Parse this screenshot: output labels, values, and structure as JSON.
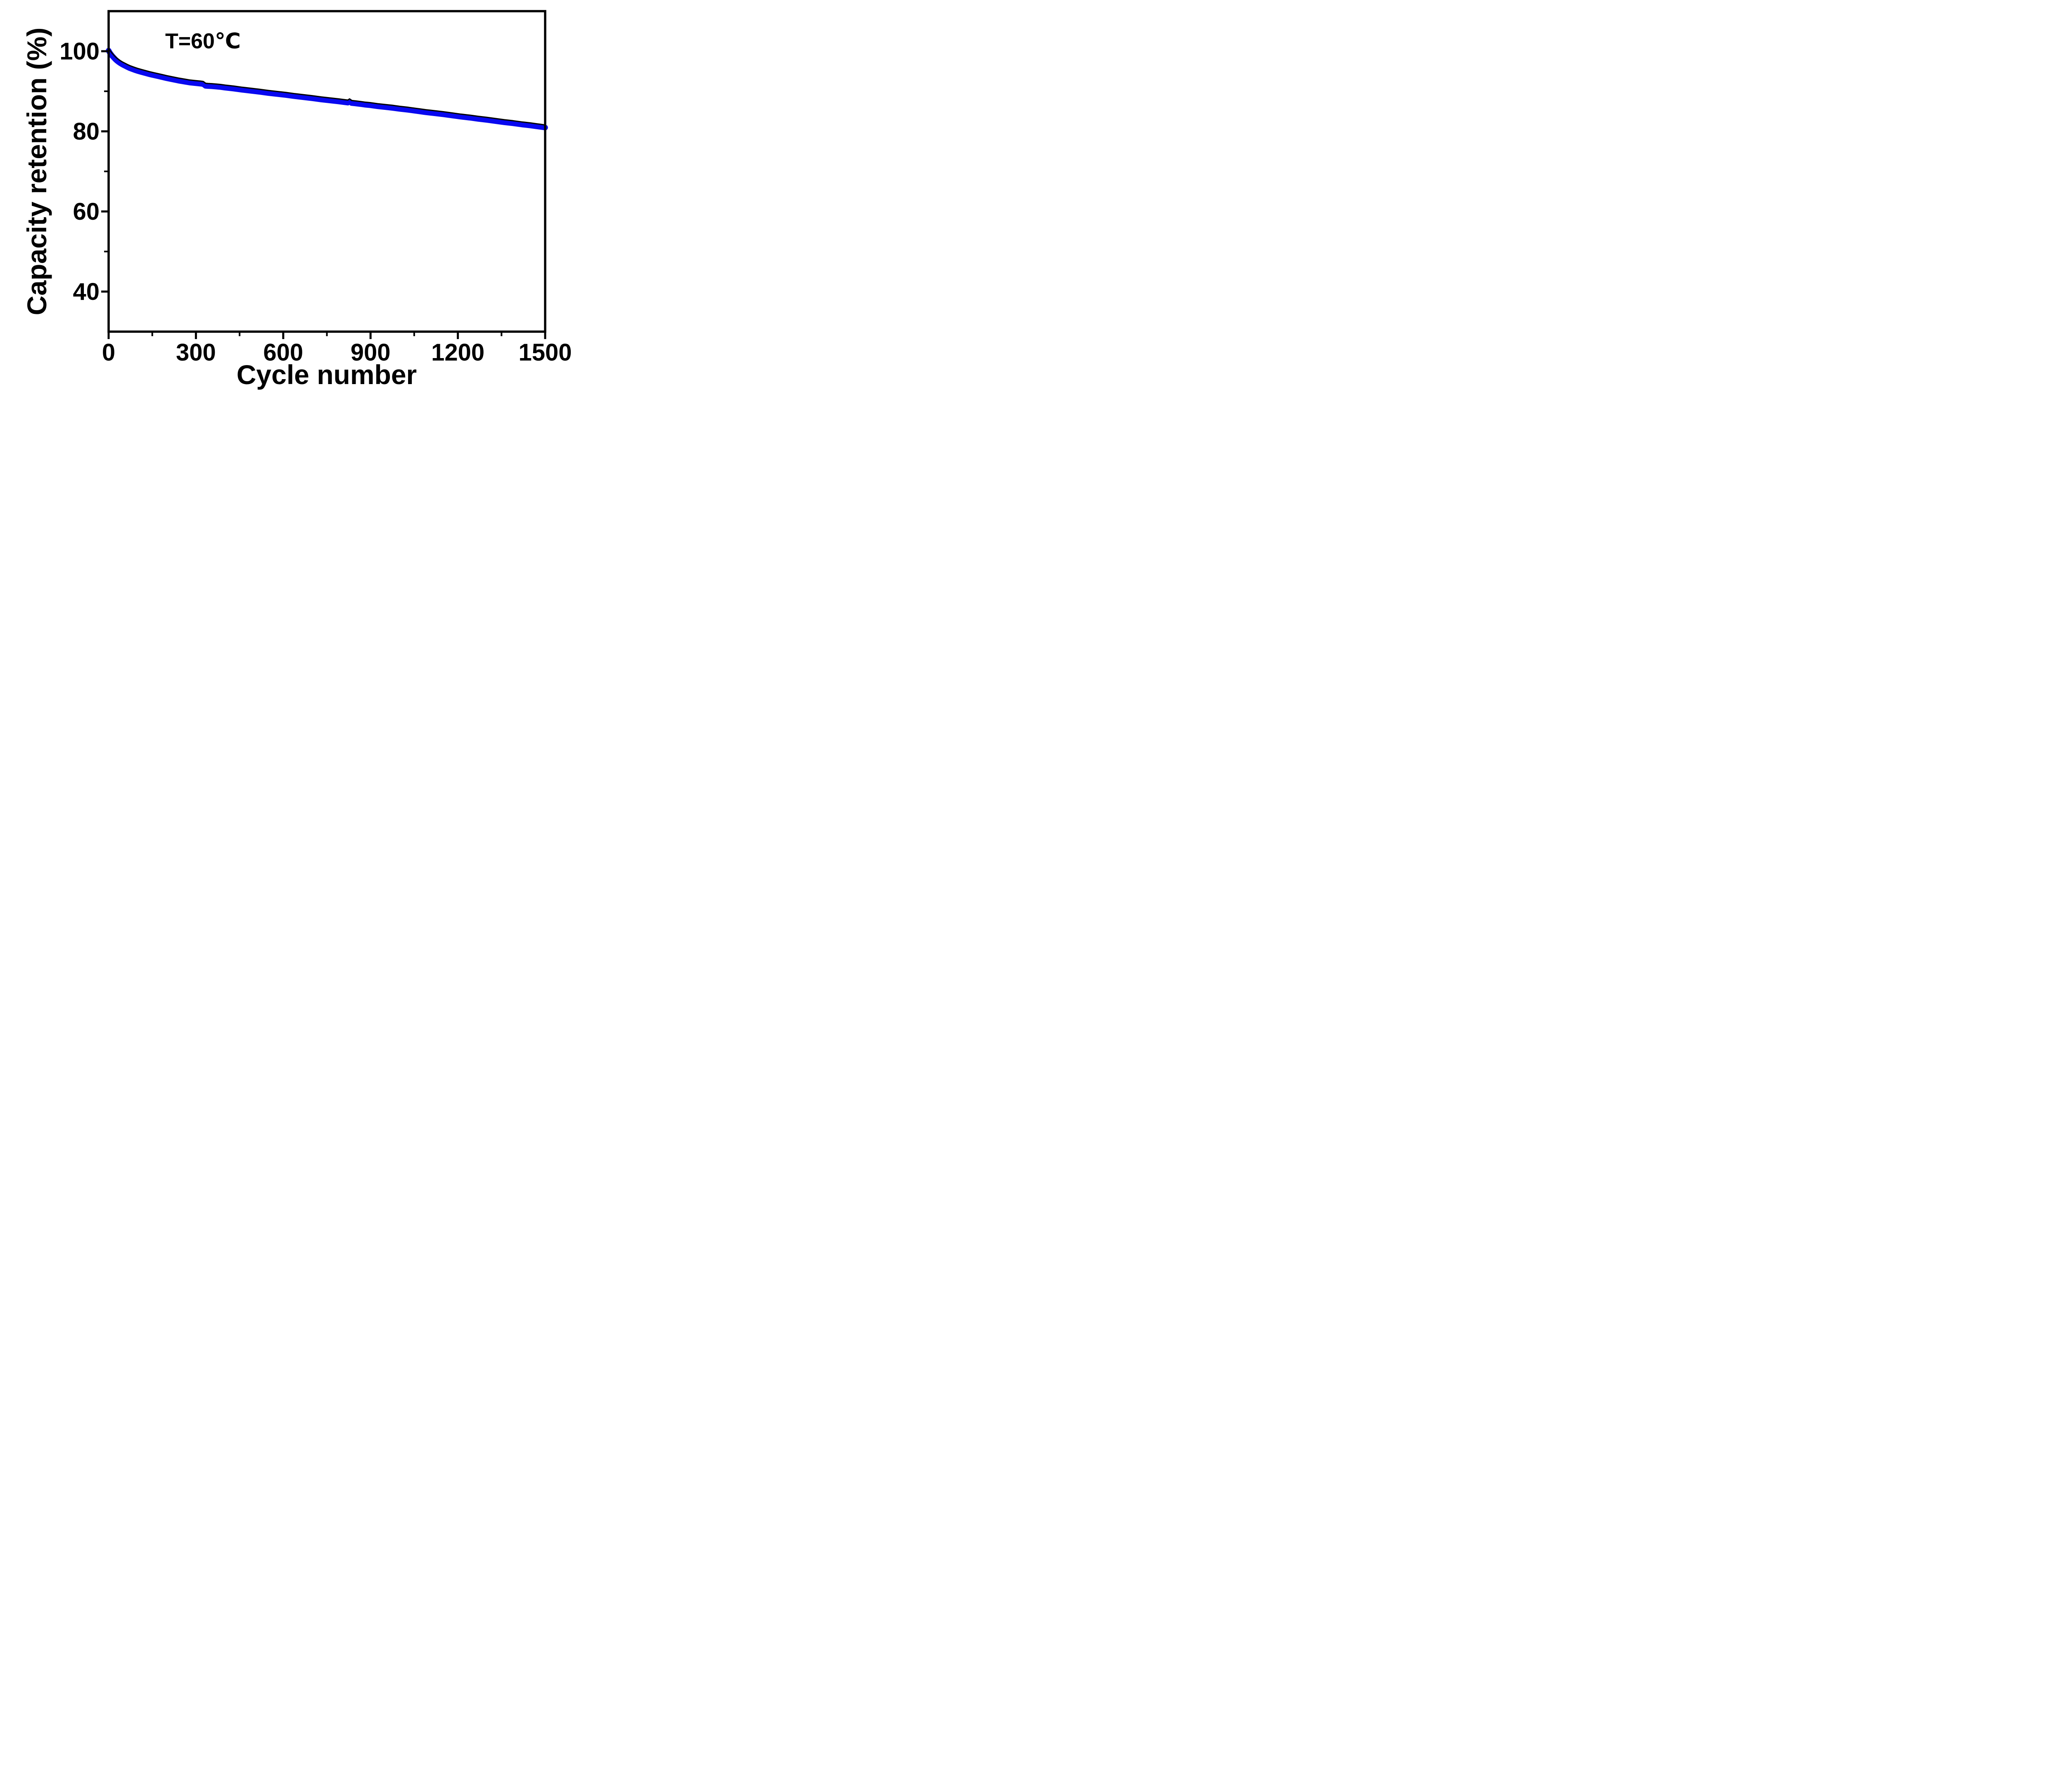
{
  "annotation": "T=60℃",
  "axes": {
    "x": {
      "label": "Cycle number",
      "min": 0,
      "max": 1500,
      "major_ticks": [
        0,
        300,
        600,
        900,
        1200,
        1500
      ],
      "minor_step": 150
    },
    "y": {
      "label": "Capacity retention (%)",
      "min": 30,
      "max": 110,
      "major_ticks": [
        40,
        60,
        80,
        100
      ],
      "minor_step": 10
    }
  },
  "colors": {
    "curve_blue": "#0808f0",
    "curve_edge_black": "#000000",
    "axis_black": "#000000",
    "background": "#ffffff"
  },
  "chart_data": {
    "type": "line",
    "title": "",
    "xlabel": "Cycle number",
    "ylabel": "Capacity retention (%)",
    "xlim": [
      0,
      1500
    ],
    "ylim": [
      30,
      110
    ],
    "grid": false,
    "legend_position": "none",
    "annotation": "T=60℃",
    "series": [
      {
        "name": "Capacity retention at 60C",
        "x": [
          0,
          4,
          8,
          12,
          17,
          22,
          28,
          34,
          41,
          48,
          56,
          64,
          73,
          82,
          92,
          100,
          112,
          125,
          140,
          155,
          170,
          185,
          200,
          220,
          240,
          260,
          280,
          300,
          315,
          325,
          333,
          342,
          355,
          370,
          385,
          400,
          430,
          460,
          490,
          520,
          550,
          580,
          610,
          640,
          670,
          700,
          730,
          760,
          790,
          812,
          822,
          828,
          835,
          848,
          865,
          880,
          900,
          925,
          950,
          975,
          1000,
          1030,
          1060,
          1090,
          1120,
          1150,
          1180,
          1210,
          1240,
          1270,
          1300,
          1330,
          1360,
          1390,
          1420,
          1450,
          1470,
          1485,
          1500
        ],
        "y": [
          100.8,
          100.3,
          99.9,
          99.5,
          99.1,
          98.7,
          98.3,
          97.95,
          97.6,
          97.3,
          97.0,
          96.7,
          96.4,
          96.15,
          95.9,
          95.7,
          95.45,
          95.2,
          94.9,
          94.65,
          94.4,
          94.15,
          93.9,
          93.6,
          93.3,
          93.05,
          92.8,
          92.65,
          92.55,
          92.45,
          92.0,
          91.95,
          91.9,
          91.8,
          91.7,
          91.55,
          91.3,
          91.0,
          90.75,
          90.5,
          90.2,
          89.95,
          89.7,
          89.4,
          89.15,
          88.9,
          88.6,
          88.35,
          88.1,
          87.9,
          87.8,
          88.1,
          87.7,
          87.6,
          87.45,
          87.3,
          87.15,
          86.9,
          86.7,
          86.5,
          86.25,
          86.0,
          85.7,
          85.4,
          85.15,
          84.9,
          84.6,
          84.3,
          84.05,
          83.75,
          83.5,
          83.2,
          82.9,
          82.65,
          82.35,
          82.1,
          81.9,
          81.75,
          81.6
        ]
      }
    ]
  }
}
